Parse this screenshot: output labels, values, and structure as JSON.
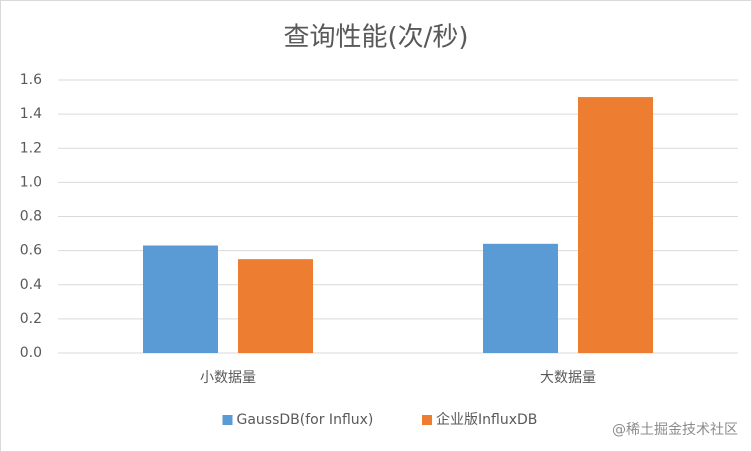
{
  "chart_data": {
    "type": "bar",
    "title": "查询性能(次/秒)",
    "categories": [
      "小数据量",
      "大数据量"
    ],
    "series": [
      {
        "name": "GaussDB(for Influx)",
        "color": "#5b9bd5",
        "values": [
          0.63,
          0.64
        ]
      },
      {
        "name": "企业版InfluxDB",
        "color": "#ed7d31",
        "values": [
          0.55,
          1.5
        ]
      }
    ],
    "ylim": [
      0,
      1.6
    ],
    "yticks": [
      {
        "value": 0,
        "label": "0.0"
      },
      0.2,
      0.4,
      0.6,
      0.8,
      {
        "value": 1,
        "label": "1.0"
      },
      1.2,
      1.4,
      1.6
    ],
    "grid": true,
    "legend": "bottom",
    "watermark": "@稀土掘金技术社区"
  }
}
